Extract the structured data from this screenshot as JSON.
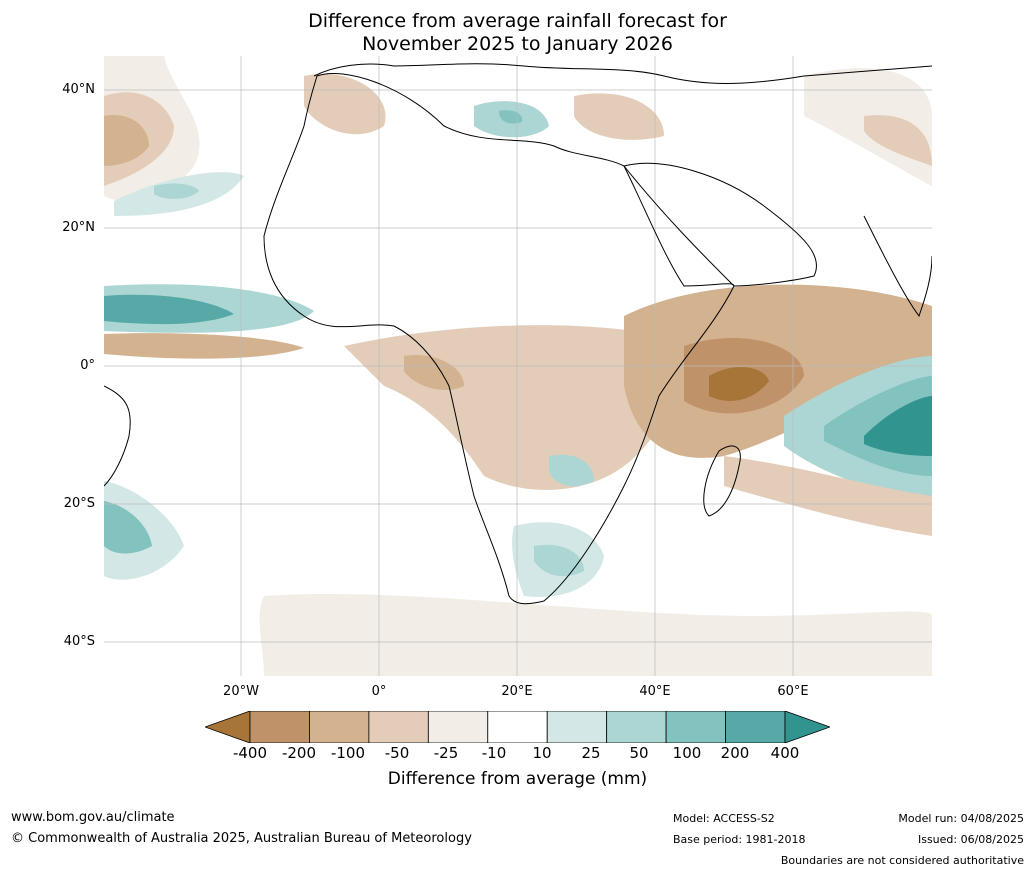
{
  "title": {
    "line1": "Difference from average rainfall forecast for",
    "line2": "November 2025 to January 2026"
  },
  "map": {
    "region": "Africa and surrounding oceans",
    "lat_labels": [
      "40°N",
      "20°N",
      "0°",
      "20°S",
      "40°S"
    ],
    "lon_labels": [
      "20°W",
      "0°",
      "20°E",
      "40°E",
      "60°E"
    ],
    "colors": {
      "-400": "#a87539",
      "-200": "#bf926a",
      "-100": "#d3b290",
      "-50": "#e3cdb9",
      "-25": "#f2ede6",
      "neutral": "#ffffff",
      "25": "#d3e8e6",
      "50": "#acd6d3",
      "100": "#82c2bf",
      "200": "#56a9a6",
      "400": "#31948f"
    }
  },
  "colorbar": {
    "ticks": [
      "-400",
      "-200",
      "-100",
      "-50",
      "-25",
      "-10",
      "10",
      "25",
      "50",
      "100",
      "200",
      "400"
    ],
    "title": "Difference from average (mm)",
    "colors": [
      "#a87539",
      "#bf926a",
      "#d3b290",
      "#e3cdb9",
      "#f2ede6",
      "#ffffff",
      "#d3e8e6",
      "#acd6d3",
      "#82c2bf",
      "#56a9a6",
      "#31948f"
    ]
  },
  "footer": {
    "website": "www.bom.gov.au/climate",
    "copyright": "© Commonwealth of Australia 2025, Australian Bureau of Meteorology",
    "model": "Model: ACCESS-S2",
    "base_period": "Base period: 1981-2018",
    "model_run": "Model run: 04/08/2025",
    "issued": "Issued: 06/08/2025",
    "disclaimer": "Boundaries are not considered authoritative"
  }
}
